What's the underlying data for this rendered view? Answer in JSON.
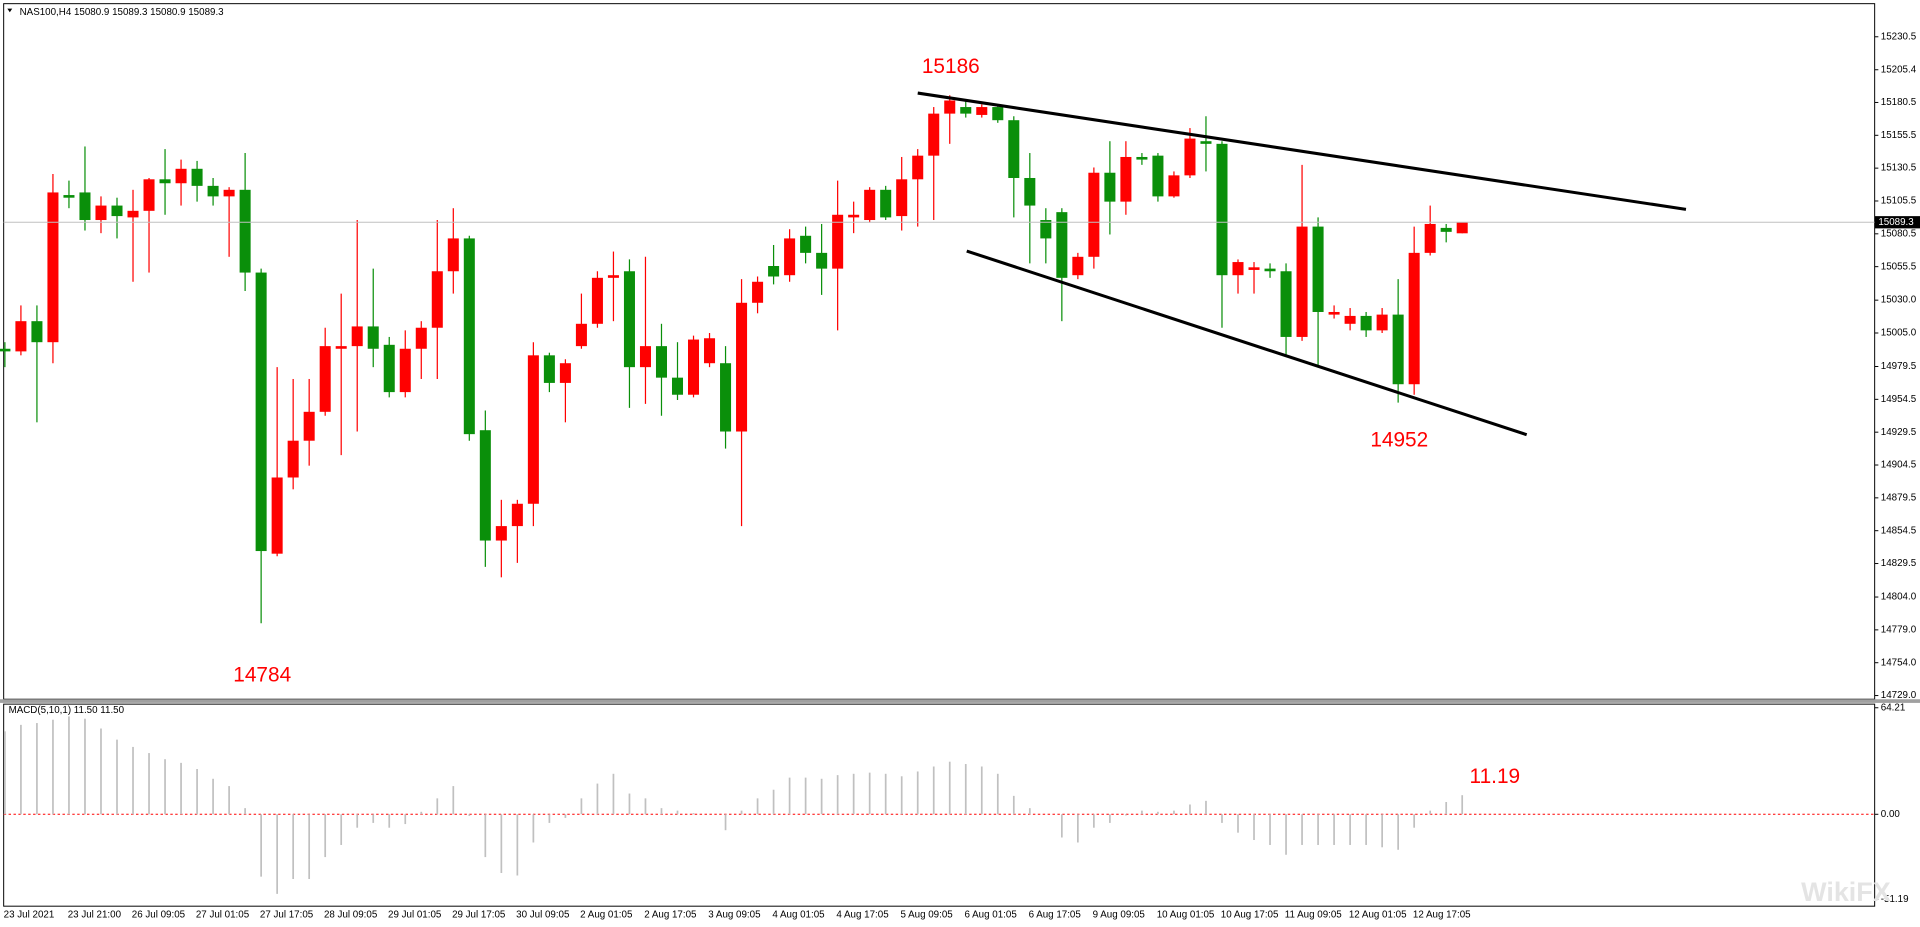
{
  "chart_data": [
    {
      "type": "candlestick",
      "title": "NAS100,H4  15080.9 15089.3 15080.9 15089.3",
      "up_color": "#ff0000",
      "down_color": "#0a8f0a",
      "categories": [
        "23 Jul 2021",
        null,
        null,
        null,
        "23 Jul 21:00",
        null,
        null,
        null,
        "26 Jul 09:05",
        null,
        null,
        null,
        "27 Jul 01:05",
        null,
        null,
        null,
        "27 Jul 17:05",
        null,
        null,
        null,
        "28 Jul 09:05",
        null,
        null,
        null,
        "29 Jul 01:05",
        null,
        null,
        null,
        "29 Jul 17:05",
        null,
        null,
        null,
        "30 Jul 09:05",
        null,
        null,
        null,
        "2 Aug 01:05",
        null,
        null,
        null,
        "2 Aug 17:05",
        null,
        null,
        null,
        "3 Aug 09:05",
        null,
        null,
        null,
        "4 Aug 01:05",
        null,
        null,
        null,
        "4 Aug 17:05",
        null,
        null,
        null,
        "5 Aug 09:05",
        null,
        null,
        null,
        "6 Aug 01:05",
        null,
        null,
        null,
        "6 Aug 17:05",
        null,
        null,
        null,
        "9 Aug 09:05",
        null,
        null,
        null,
        "10 Aug 01:05",
        null,
        null,
        null,
        "10 Aug 17:05",
        null,
        null,
        null,
        "11 Aug 09:05",
        null,
        null,
        null,
        "12 Aug 01:05",
        null,
        null,
        null,
        "12 Aug 17:05",
        null,
        null,
        null
      ],
      "open": [
        14993,
        14991,
        15014,
        14998,
        15110,
        15112,
        15091,
        15102,
        15093,
        15098,
        15122,
        15119,
        15130,
        15117,
        15109,
        15114,
        15051,
        14837,
        14895,
        14923,
        14945,
        14993,
        14995,
        15010,
        14996,
        14960,
        14993,
        15009,
        15052,
        15077,
        14931,
        14847,
        14858,
        14875,
        14988,
        14967,
        14995,
        15012,
        15047,
        15052,
        14979,
        14995,
        14971,
        14958,
        14982,
        14982,
        14930,
        15028,
        15056,
        15049,
        15079,
        15066,
        15054,
        15093,
        15091,
        15114,
        15094,
        15122,
        15140,
        15172,
        15177,
        15171,
        15177,
        15167,
        15123,
        15091,
        15097,
        15049,
        15063,
        15127,
        15105,
        15139,
        15140,
        15109,
        15125,
        15151,
        15149,
        15049,
        15053,
        15054,
        15052,
        15002,
        15086,
        15019,
        15012,
        15018,
        15007,
        15019,
        14966,
        15066,
        15085,
        15080.9
      ],
      "high": [
        14998,
        15026,
        15026,
        15126,
        15121,
        15147,
        15109,
        15108,
        15114,
        15123,
        15145,
        15137,
        15136,
        15123,
        15116,
        15142,
        15054,
        14979,
        14970,
        14970,
        15009,
        15035,
        15091,
        15054,
        15002,
        15007,
        15014,
        15091,
        15100,
        15079,
        14946,
        14878,
        14878,
        14998,
        14990,
        14985,
        15035,
        15052,
        15067,
        15061,
        15063,
        15012,
        14998,
        15003,
        15005,
        14995,
        15046,
        15048,
        15072,
        15084,
        15086,
        15088,
        15121,
        15105,
        15116,
        15117,
        15139,
        15145,
        15177,
        15186,
        15182,
        15179,
        15179,
        15170,
        15142,
        15100,
        15100,
        15066,
        15131,
        15151,
        15151,
        15142,
        15142,
        15128,
        15161,
        15170,
        15151,
        15061,
        15059,
        15058,
        15058,
        15133,
        15093,
        15026,
        15024,
        15021,
        15024,
        15046,
        15086,
        15102,
        15088,
        15089.3
      ],
      "low": [
        14979,
        14988,
        14937,
        14982,
        15100,
        15083,
        15081,
        15077,
        15044,
        15051,
        15095,
        15102,
        15105,
        15102,
        15063,
        15037,
        14784,
        14835,
        14886,
        14904,
        14942,
        14912,
        14930,
        14979,
        14956,
        14956,
        14970,
        14970,
        15035,
        14923,
        14827,
        14819,
        14830,
        14858,
        14960,
        14937,
        14993,
        15009,
        15014,
        14948,
        14951,
        14942,
        14954,
        14956,
        14979,
        14917,
        14858,
        15020,
        15042,
        15044,
        15058,
        15034,
        15007,
        15081,
        15089,
        15091,
        15083,
        15086,
        15091,
        15149,
        15169,
        15169,
        15165,
        15093,
        15058,
        15058,
        15014,
        15046,
        15054,
        15080,
        15095,
        15133,
        15105,
        15108,
        15123,
        15128,
        15009,
        15035,
        15035,
        15047,
        14988,
        14999,
        14979,
        15016,
        15007,
        15002,
        15005,
        14952,
        14958,
        15064,
        15074,
        15080.9
      ],
      "close": [
        14991,
        15014,
        14998,
        15112,
        15108,
        15091,
        15102,
        15094,
        15098,
        15122,
        15119,
        15130,
        15117,
        15109,
        15114,
        15051,
        14839,
        14895,
        14923,
        14945,
        14995,
        14995,
        15010,
        14993,
        14960,
        14993,
        15009,
        15052,
        15077,
        14928,
        14847,
        14858,
        14875,
        14988,
        14967,
        14982,
        15012,
        15047,
        15049,
        14979,
        14995,
        14971,
        14958,
        15000,
        15001,
        14930,
        15028,
        15044,
        15048,
        15077,
        15066,
        15054,
        15095,
        15095,
        15114,
        15093,
        15122,
        15140,
        15172,
        15182,
        15172,
        15177,
        15167,
        15123,
        15102,
        15077,
        15047,
        15063,
        15127,
        15105,
        15139,
        15137,
        15109,
        15125,
        15153,
        15149,
        15049,
        15059,
        15055,
        15052,
        15002,
        15086,
        15021,
        15021,
        15018,
        15007,
        15019,
        14966,
        15066,
        15088,
        15082,
        15089.3
      ],
      "last_price": 15089.3,
      "ylim": [
        14726.2,
        15255.7
      ],
      "yticks": [
        15230.5,
        15205.4,
        15180.5,
        15155.5,
        15130.5,
        15105.5,
        15080.5,
        15055.5,
        {
          "value": 15030,
          "label": "15030.0"
        },
        {
          "value": 15005,
          "label": "15005.0"
        },
        14979.5,
        14954.5,
        14929.5,
        14904.5,
        14879.5,
        14854.5,
        14829.5,
        {
          "value": 14804,
          "label": "14804.0"
        },
        {
          "value": 14779,
          "label": "14779.0"
        },
        {
          "value": 14754,
          "label": "14754.0"
        },
        {
          "value": 14729,
          "label": "14729.0"
        }
      ],
      "annotations": [
        "15186",
        "14784",
        "14952"
      ],
      "watermark": "WikiFX"
    },
    {
      "type": "bar",
      "title": "MACD(5,10,1) 11.50 11.50",
      "color": "#c0c0c0",
      "values": [
        50,
        53.9,
        55,
        57,
        59,
        57.6,
        51.7,
        45,
        40.6,
        36.9,
        33.2,
        31,
        27.3,
        21.4,
        17,
        3.7,
        -37.6,
        -48,
        -39,
        -39,
        -25.8,
        -18.5,
        -8.1,
        -5.2,
        -8.1,
        -5.9,
        1.5,
        9.6,
        17,
        -1,
        -25.8,
        -35.4,
        -36.9,
        -17,
        -5.2,
        -2.2,
        9.6,
        18.5,
        24.4,
        12.5,
        9.6,
        3.7,
        2.2,
        0.7,
        0,
        -9.6,
        2.2,
        9.6,
        14.8,
        22.1,
        22.1,
        21.4,
        23.6,
        24.4,
        25.1,
        24.4,
        22.9,
        25.8,
        28.8,
        31.7,
        30.3,
        28.8,
        24.4,
        11.1,
        3.7,
        0,
        -14,
        -17,
        -8.1,
        -5.2,
        -0.7,
        2.2,
        1.5,
        2.2,
        5.9,
        8.1,
        -5.2,
        -11.1,
        -15.5,
        -18.5,
        -24.4,
        -18.5,
        -18.5,
        -18.5,
        -18.5,
        -18.5,
        -19.9,
        -21.4,
        -8.1,
        2.2,
        7.4,
        11.5
      ],
      "ylim": [
        -55.4,
        66.4
      ],
      "yticks": [
        64.21,
        {
          "value": 0,
          "label": "0.00"
        },
        -51.19
      ],
      "annotations": [
        "11.19"
      ]
    }
  ]
}
